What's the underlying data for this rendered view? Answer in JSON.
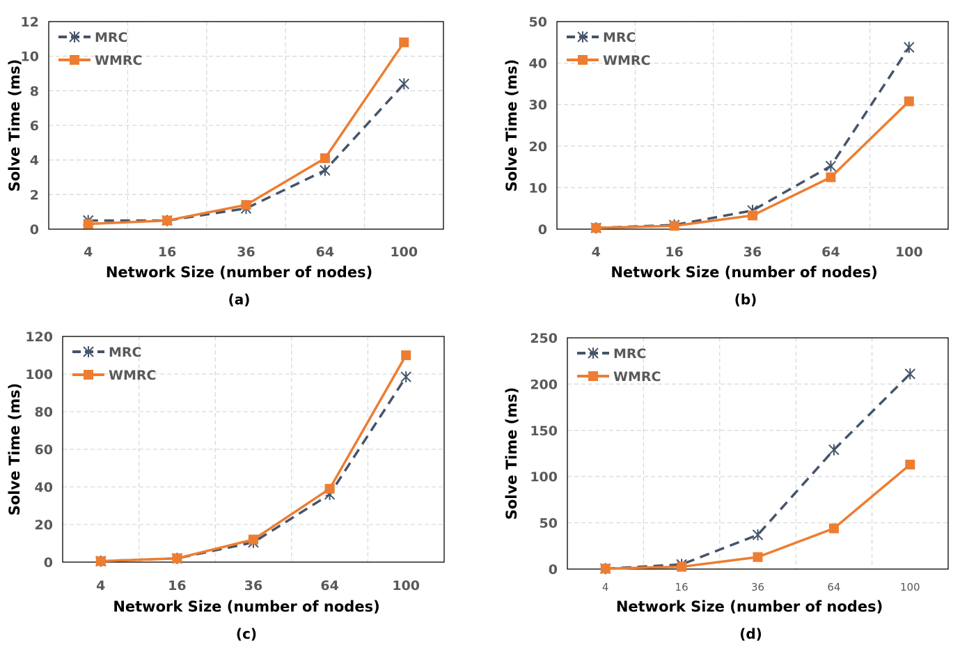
{
  "colors": {
    "MRC": "#44546a",
    "WMRC": "#ed7d31",
    "grid": "#d9d9d9"
  },
  "chart_data": [
    {
      "type": "line",
      "panel_label": "(a)",
      "xlabel": "Network Size (number of nodes)",
      "ylabel": "Solve Time (ms)",
      "categories": [
        "4",
        "16",
        "36",
        "64",
        "100"
      ],
      "ylim": [
        0,
        12
      ],
      "yticks": [
        0,
        2,
        4,
        6,
        8,
        10,
        12
      ],
      "grid": true,
      "legend": "top-left",
      "series": [
        {
          "name": "MRC",
          "values": [
            0.5,
            0.5,
            1.2,
            3.4,
            8.4
          ]
        },
        {
          "name": "WMRC",
          "values": [
            0.3,
            0.5,
            1.4,
            4.1,
            10.8
          ]
        }
      ]
    },
    {
      "type": "line",
      "panel_label": "(b)",
      "xlabel": "Network Size (number of nodes)",
      "ylabel": "Solve Time (ms)",
      "categories": [
        "4",
        "16",
        "36",
        "64",
        "100"
      ],
      "ylim": [
        0,
        50
      ],
      "yticks": [
        0,
        10,
        20,
        30,
        40,
        50
      ],
      "grid": true,
      "legend": "top-left",
      "series": [
        {
          "name": "MRC",
          "values": [
            0.3,
            1.0,
            4.5,
            15.2,
            43.8
          ]
        },
        {
          "name": "WMRC",
          "values": [
            0.3,
            0.8,
            3.3,
            12.5,
            30.8
          ]
        }
      ]
    },
    {
      "type": "line",
      "panel_label": "(c)",
      "xlabel": "Network Size (number of nodes)",
      "ylabel": "Solve Time (ms)",
      "categories": [
        "4",
        "16",
        "36",
        "64",
        "100"
      ],
      "ylim": [
        0,
        120
      ],
      "yticks": [
        0,
        20,
        40,
        60,
        80,
        100,
        120
      ],
      "grid": true,
      "legend": "top-left",
      "series": [
        {
          "name": "MRC",
          "values": [
            0.5,
            2,
            10.5,
            36,
            98.5
          ]
        },
        {
          "name": "WMRC",
          "values": [
            0.5,
            2,
            12,
            39,
            110
          ]
        }
      ]
    },
    {
      "type": "line",
      "panel_label": "(d)",
      "xlabel": "Network Size (number of nodes)",
      "ylabel": "Solve Time (ms)",
      "categories": [
        "4",
        "16",
        "36",
        "64",
        "100"
      ],
      "ylim": [
        0,
        250
      ],
      "yticks": [
        0,
        50,
        100,
        150,
        200,
        250
      ],
      "grid": true,
      "legend": "top-left",
      "series": [
        {
          "name": "MRC",
          "values": [
            0.5,
            5,
            37,
            129,
            211
          ]
        },
        {
          "name": "WMRC",
          "values": [
            0.5,
            2.5,
            13,
            44,
            113
          ]
        }
      ]
    }
  ]
}
